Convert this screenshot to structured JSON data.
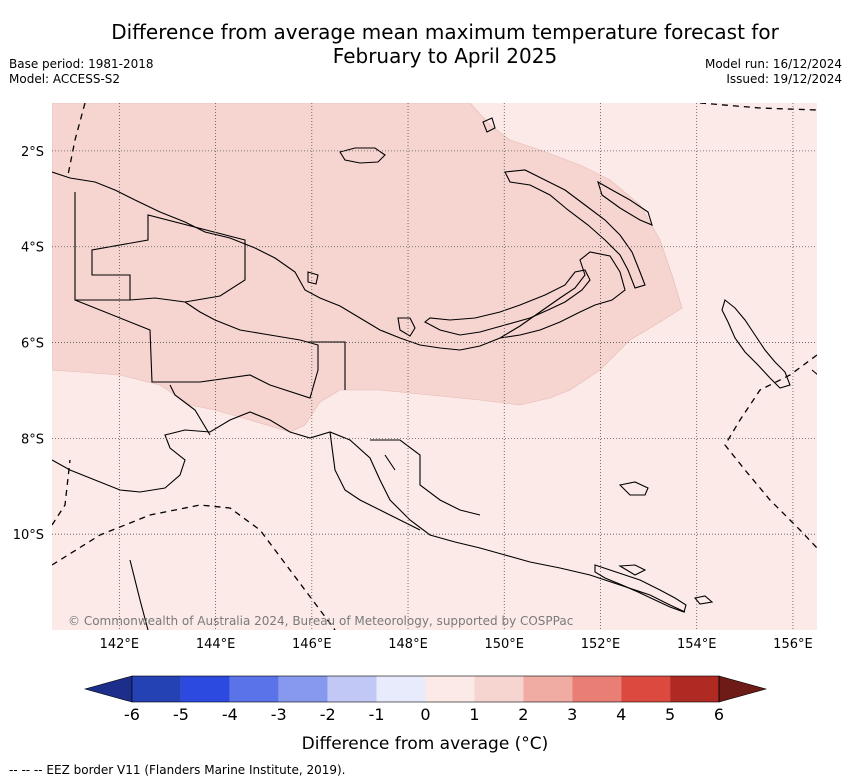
{
  "title": {
    "line1": "Difference from average mean maximum temperature forecast for",
    "line2": "February to April 2025"
  },
  "meta_left": {
    "base_period": "Base period: 1981-2018",
    "model": "Model: ACCESS-S2"
  },
  "meta_right": {
    "model_run": "Model run: 16/12/2024",
    "issued": "Issued: 19/12/2024"
  },
  "map": {
    "lon_range": [
      140.6,
      156.5
    ],
    "lat_range": [
      -12.0,
      -1.0
    ],
    "lon_ticks": [
      "142°E",
      "144°E",
      "146°E",
      "148°E",
      "150°E",
      "152°E",
      "154°E",
      "156°E"
    ],
    "lat_ticks": [
      "2°S",
      "4°S",
      "6°S",
      "8°S",
      "10°S"
    ],
    "gridlines": true,
    "copyright": "© Commonwealth of Australia 2024, Bureau of Meteorology, supported by COSPPac",
    "region_fill": {
      "background_class": "0 to 1",
      "background_color": "#fbeae7",
      "anomaly_area_class": "1 to 2",
      "anomaly_area_color": "#f6d5d1"
    }
  },
  "colorbar": {
    "title": "Difference from average (°C)",
    "ticks": [
      "-6",
      "-5",
      "-4",
      "-3",
      "-2",
      "-1",
      "0",
      "1",
      "2",
      "3",
      "4",
      "5",
      "6"
    ],
    "under_color": "#1c2e8a",
    "over_color": "#6e1a17",
    "colors": [
      "#2442b4",
      "#2d4ae0",
      "#5a73e8",
      "#8699ee",
      "#c1c8f6",
      "#e8ebfb",
      "#fbeae7",
      "#f6d5d1",
      "#f0aca3",
      "#e87e74",
      "#dc4a3f",
      "#ae2a22"
    ]
  },
  "footnote": "-- -- -- EEZ border V11 (Flanders Marine Institute, 2019)."
}
